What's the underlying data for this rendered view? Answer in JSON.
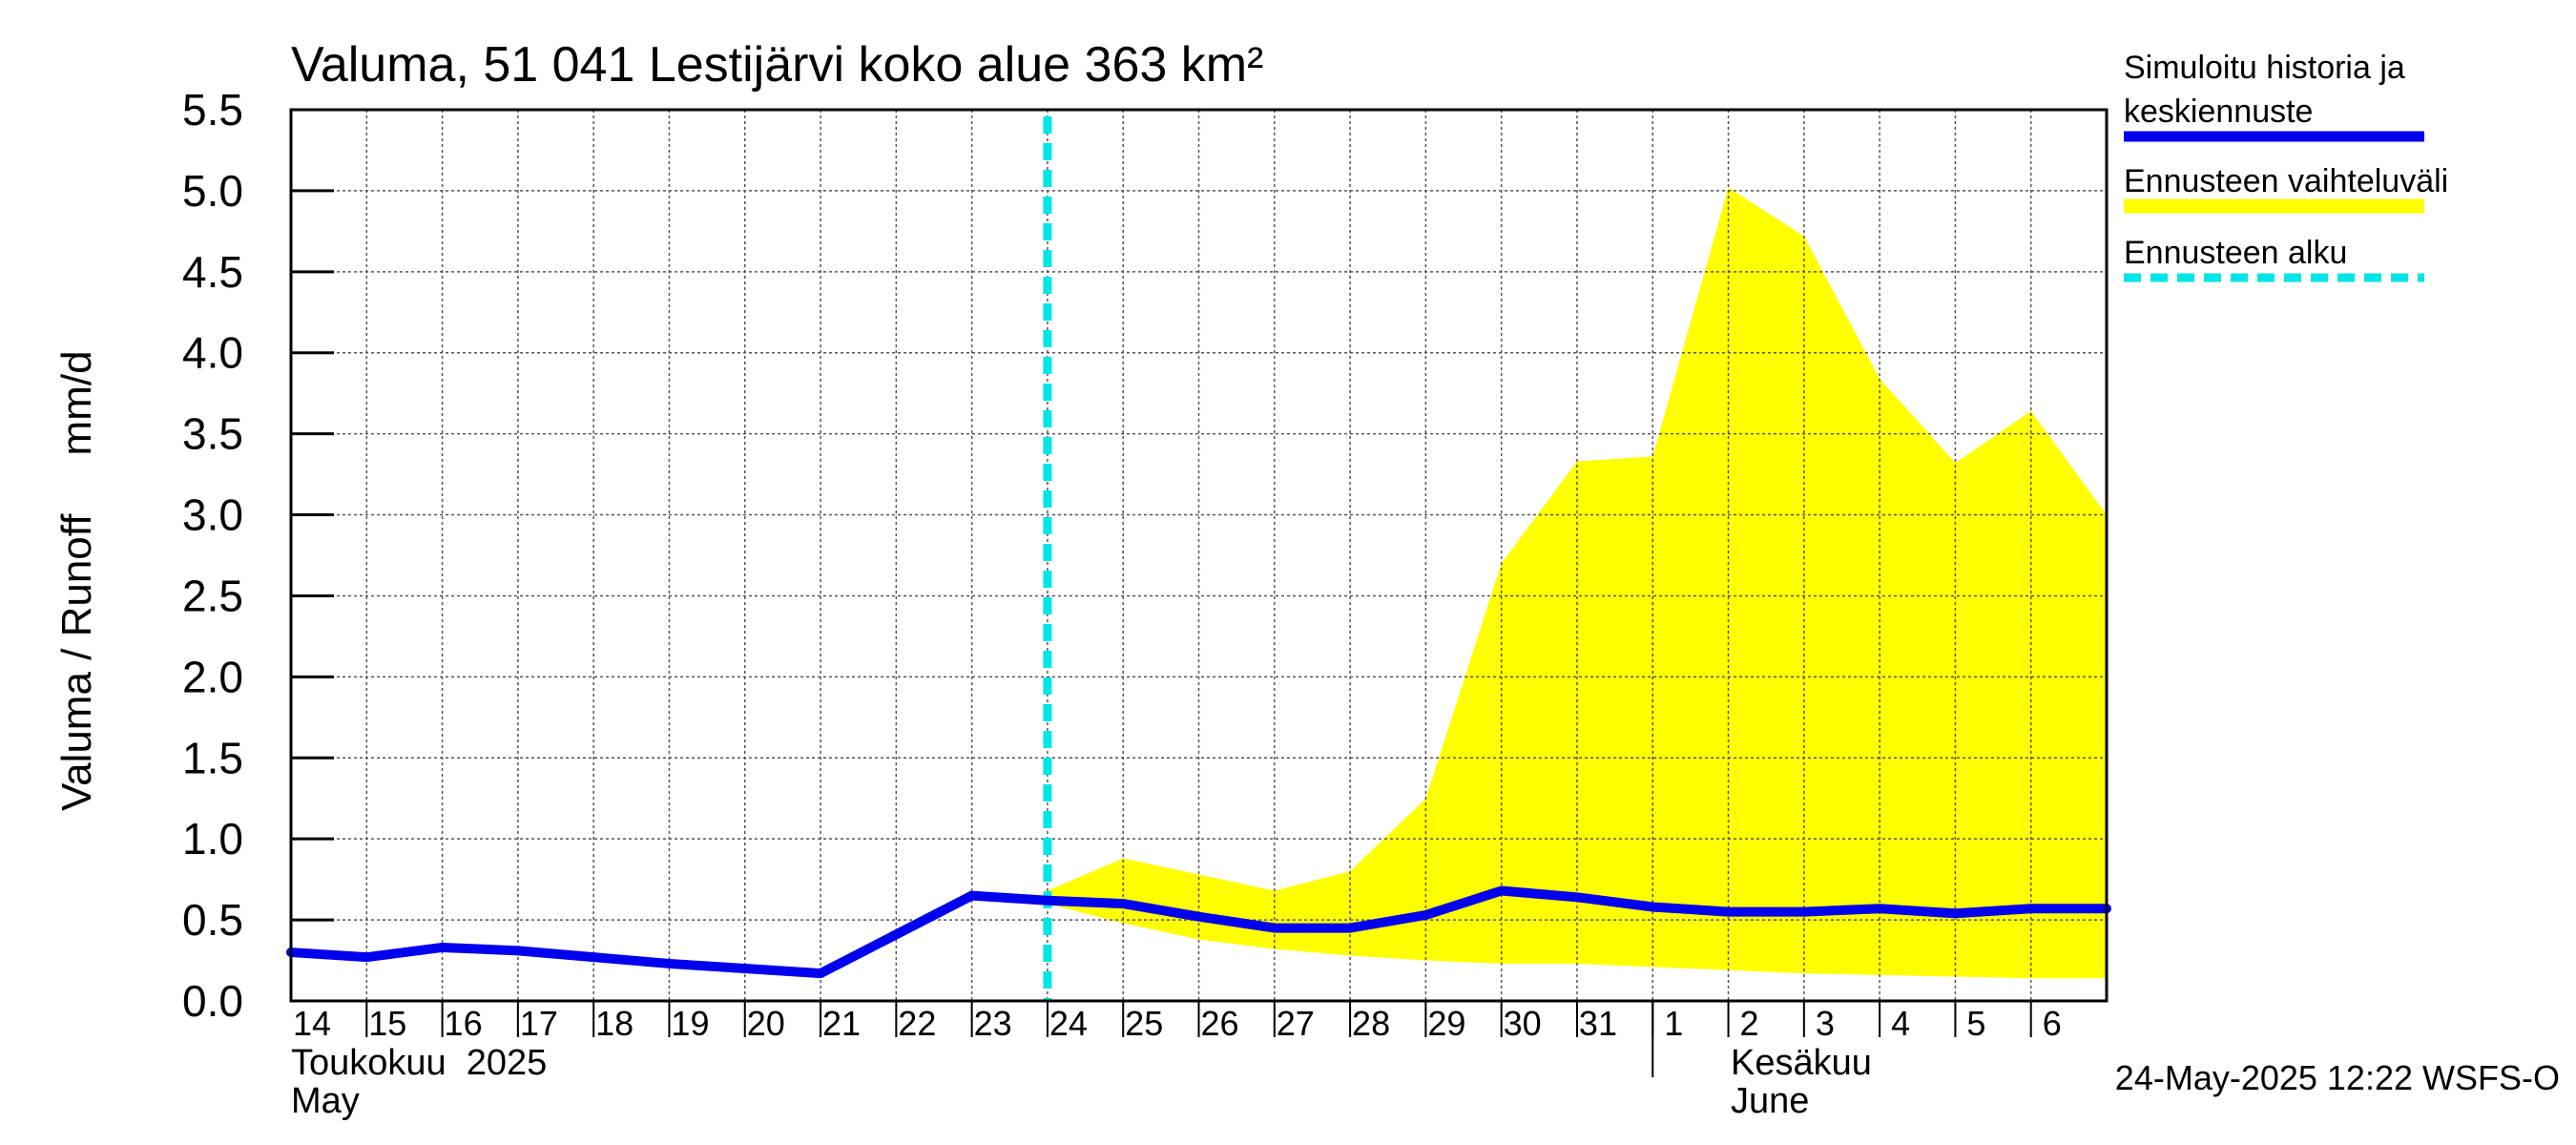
{
  "chart_data": {
    "type": "line",
    "title": "Valuma, 51 041 Lestijärvi koko alue 363 km²",
    "ylabel": "Valuma / Runoff     mm/d",
    "xlabel": "",
    "ylim": [
      0,
      5.5
    ],
    "yticks": [
      "0.0",
      "0.5",
      "1.0",
      "1.5",
      "2.0",
      "2.5",
      "3.0",
      "3.5",
      "4.0",
      "4.5",
      "5.0",
      "5.5"
    ],
    "x_day_labels": [
      "14",
      "15",
      "16",
      "17",
      "18",
      "19",
      "20",
      "21",
      "22",
      "23",
      "24",
      "25",
      "26",
      "27",
      "28",
      "29",
      "30",
      "31",
      "1",
      "2",
      "3",
      "4",
      "5",
      "6"
    ],
    "month_labels": [
      {
        "fi": "Toukokuu  2025",
        "en": "May"
      },
      {
        "fi": "Kesäkuu",
        "en": "June"
      }
    ],
    "forecast_start_day_index": 10,
    "series": [
      {
        "name": "Simuloitu historia ja keskiennuste",
        "color": "#0000ee",
        "style": "solid",
        "x": [
          0,
          1,
          2,
          3,
          4,
          5,
          6,
          7,
          8,
          9,
          10,
          11,
          12,
          13,
          14,
          15,
          16,
          17,
          18,
          19,
          20,
          21,
          22,
          23,
          24
        ],
        "values": [
          0.3,
          0.27,
          0.33,
          0.31,
          0.27,
          0.23,
          0.2,
          0.17,
          0.41,
          0.65,
          0.62,
          0.6,
          0.52,
          0.45,
          0.45,
          0.53,
          0.68,
          0.64,
          0.58,
          0.55,
          0.55,
          0.57,
          0.54,
          0.57,
          0.57
        ]
      },
      {
        "name": "Ennusteen vaihteluväli",
        "color": "#ffff00",
        "style": "band",
        "x": [
          10,
          11,
          12,
          13,
          14,
          15,
          16,
          17,
          18,
          19,
          20,
          21,
          22,
          23,
          24
        ],
        "upper": [
          0.68,
          0.88,
          0.78,
          0.68,
          0.8,
          1.25,
          2.7,
          3.33,
          3.36,
          5.02,
          4.72,
          3.84,
          3.32,
          3.64,
          3.0
        ],
        "lower": [
          0.6,
          0.48,
          0.38,
          0.32,
          0.28,
          0.25,
          0.23,
          0.23,
          0.21,
          0.19,
          0.17,
          0.16,
          0.15,
          0.14,
          0.14
        ]
      },
      {
        "name": "Ennusteen alku",
        "color": "#00e5e5",
        "style": "dashed-vertical",
        "x": [
          10
        ]
      }
    ],
    "legend": {
      "placement": "right",
      "entries": [
        "Simuloitu historia ja",
        "keskiennuste",
        "Ennusteen vaihteluväli",
        "Ennusteen alku"
      ]
    },
    "footer": "24-May-2025 12:22 WSFS-O",
    "grid": true
  }
}
